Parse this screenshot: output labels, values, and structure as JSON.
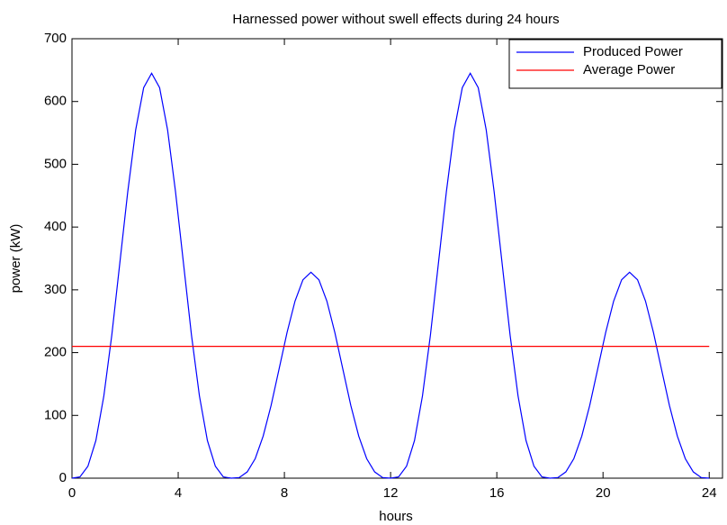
{
  "chart_data": {
    "type": "line",
    "title": "Harnessed power without swell effects during 24 hours",
    "xlabel": "hours",
    "ylabel": "power (kW)",
    "series": [
      {
        "name": "Produced Power",
        "color": "#0000ff",
        "x": [
          0,
          0.3,
          0.6,
          0.9,
          1.2,
          1.5,
          1.8,
          2.1,
          2.4,
          2.7,
          3,
          3.3,
          3.6,
          3.9,
          4.2,
          4.5,
          4.8,
          5.1,
          5.4,
          5.7,
          6,
          6.3,
          6.6,
          6.9,
          7.2,
          7.5,
          7.8,
          8.1,
          8.4,
          8.7,
          9,
          9.3,
          9.6,
          9.9,
          10.2,
          10.5,
          10.8,
          11.1,
          11.4,
          11.7,
          12,
          12.3,
          12.6,
          12.9,
          13.2,
          13.5,
          13.8,
          14.1,
          14.4,
          14.7,
          15,
          15.3,
          15.6,
          15.9,
          16.2,
          16.5,
          16.8,
          17.1,
          17.4,
          17.7,
          18,
          18.3,
          18.6,
          18.9,
          19.2,
          19.5,
          19.8,
          20.1,
          20.4,
          20.7,
          21,
          21.3,
          21.6,
          21.9,
          22.2,
          22.5,
          22.8,
          23.1,
          23.4,
          23.7,
          24
        ],
        "values": [
          0,
          2,
          19,
          60,
          131,
          228,
          342,
          456,
          555,
          622,
          645,
          622,
          555,
          456,
          342,
          228,
          131,
          60,
          19,
          2,
          0,
          1,
          10,
          31,
          67,
          116,
          174,
          232,
          282,
          316,
          328,
          316,
          282,
          232,
          174,
          116,
          67,
          31,
          10,
          1,
          0,
          2,
          19,
          60,
          131,
          228,
          342,
          456,
          555,
          622,
          645,
          622,
          555,
          456,
          342,
          228,
          131,
          60,
          19,
          2,
          0,
          1,
          10,
          31,
          67,
          116,
          174,
          232,
          282,
          316,
          328,
          316,
          282,
          232,
          174,
          116,
          67,
          31,
          10,
          1,
          0
        ]
      },
      {
        "name": "Average Power",
        "color": "#ff0000",
        "x": [
          0,
          24
        ],
        "values": [
          210,
          210
        ]
      }
    ],
    "xlim": [
      0,
      24.5
    ],
    "xticks": [
      0,
      4,
      8,
      12,
      16,
      20,
      24
    ],
    "ylim": [
      0,
      700
    ],
    "yticks": [
      0,
      100,
      200,
      300,
      400,
      500,
      600,
      700
    ],
    "grid": false,
    "legend": "top-right"
  }
}
